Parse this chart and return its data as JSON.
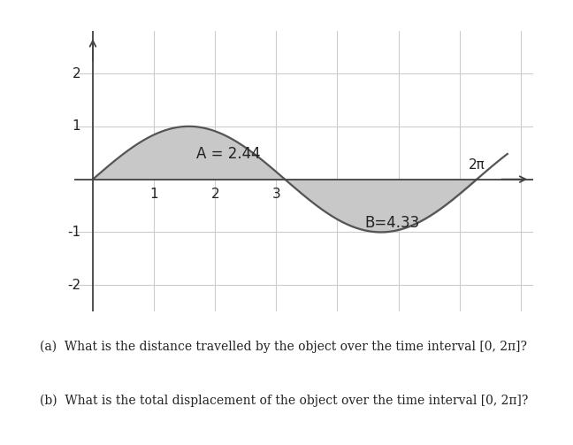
{
  "area_A_label": "A = 2.44",
  "area_B_label": "B=4.33",
  "fill_color": "#c8c8c8",
  "fill_alpha": 1.0,
  "line_color": "#555555",
  "line_width": 1.6,
  "axis_color": "#444444",
  "x_ticks": [
    1,
    2,
    3
  ],
  "y_ticks": [
    -2,
    -1,
    1,
    2
  ],
  "x_label_2pi": "2π",
  "x_min": -0.3,
  "x_max": 7.2,
  "y_min": -2.5,
  "y_max": 2.8,
  "grid_color": "#cccccc",
  "background_color": "#ffffff",
  "text_color": "#222222",
  "question_a": "(a)  What is the distance travelled by the object over the time interval [0, 2π]?",
  "question_b": "(b)  What is the total displacement of the object over the time interval [0, 2π]?"
}
